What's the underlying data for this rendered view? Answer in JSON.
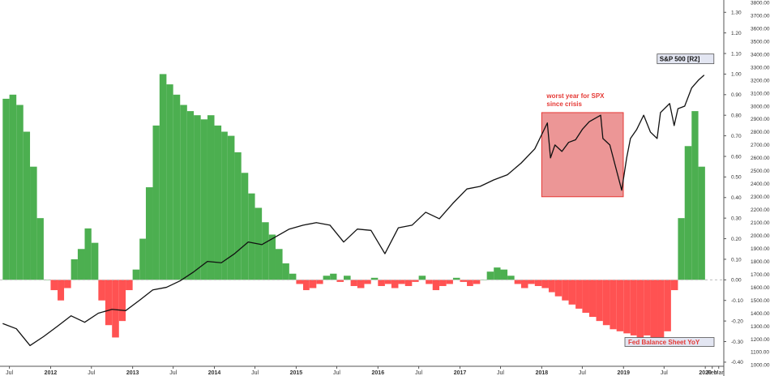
{
  "chart_data": {
    "type": "bar",
    "series": [
      {
        "name": "Fed Balance Sheet YoY",
        "type": "bar",
        "axis": "left",
        "colors": {
          "positive": "#4caf50",
          "negative": "#ff5252"
        },
        "x": [
          "2011-06-01",
          "2011-07-01",
          "2011-08-01",
          "2011-09-01",
          "2011-10-01",
          "2011-11-01",
          "2011-12-01",
          "2012-01-01",
          "2012-02-01",
          "2012-03-01",
          "2012-04-01",
          "2012-05-01",
          "2012-06-01",
          "2012-07-01",
          "2012-08-01",
          "2012-09-01",
          "2012-10-01",
          "2012-11-01",
          "2012-12-01",
          "2013-01-01",
          "2013-02-01",
          "2013-03-01",
          "2013-04-01",
          "2013-05-01",
          "2013-06-01",
          "2013-07-01",
          "2013-08-01",
          "2013-09-01",
          "2013-10-01",
          "2013-11-01",
          "2013-12-01",
          "2014-01-01",
          "2014-02-01",
          "2014-03-01",
          "2014-04-01",
          "2014-05-01",
          "2014-06-01",
          "2014-07-01",
          "2014-08-01",
          "2014-09-01",
          "2014-10-01",
          "2014-11-01",
          "2014-12-01",
          "2015-01-01",
          "2015-02-01",
          "2015-03-01",
          "2015-04-01",
          "2015-05-01",
          "2015-06-01",
          "2015-07-01",
          "2015-08-01",
          "2015-09-01",
          "2015-10-01",
          "2015-11-01",
          "2015-12-01",
          "2016-01-01",
          "2016-02-01",
          "2016-03-01",
          "2016-04-01",
          "2016-05-01",
          "2016-06-01",
          "2016-07-01",
          "2016-08-01",
          "2016-09-01",
          "2016-10-01",
          "2016-11-01",
          "2016-12-01",
          "2017-01-01",
          "2017-02-01",
          "2017-03-01",
          "2017-04-01",
          "2017-05-01",
          "2017-06-01",
          "2017-07-01",
          "2017-08-01",
          "2017-09-01",
          "2017-10-01",
          "2017-11-01",
          "2017-12-01",
          "2018-01-01",
          "2018-02-01",
          "2018-03-01",
          "2018-04-01",
          "2018-05-01",
          "2018-06-01",
          "2018-07-01",
          "2018-08-01",
          "2018-09-01",
          "2018-10-01",
          "2018-11-01",
          "2018-12-01",
          "2019-01-01",
          "2019-02-01",
          "2019-03-01",
          "2019-04-01",
          "2019-05-01",
          "2019-06-01",
          "2019-07-01",
          "2019-08-01",
          "2019-09-01",
          "2019-10-01",
          "2019-11-01",
          "2019-12-01"
        ],
        "values": [
          0.88,
          0.9,
          0.85,
          0.72,
          0.55,
          0.3,
          0.0,
          -0.05,
          -0.1,
          -0.04,
          0.1,
          0.15,
          0.25,
          0.18,
          -0.1,
          -0.22,
          -0.28,
          -0.2,
          -0.05,
          0.05,
          0.2,
          0.45,
          0.75,
          1.0,
          0.95,
          0.9,
          0.85,
          0.82,
          0.8,
          0.78,
          0.8,
          0.75,
          0.72,
          0.7,
          0.62,
          0.52,
          0.42,
          0.35,
          0.28,
          0.22,
          0.15,
          0.08,
          0.03,
          -0.02,
          -0.05,
          -0.04,
          -0.02,
          0.02,
          0.03,
          -0.01,
          0.02,
          -0.03,
          -0.04,
          -0.02,
          0.01,
          -0.03,
          -0.02,
          -0.04,
          -0.02,
          -0.03,
          -0.01,
          0.02,
          -0.02,
          -0.05,
          -0.03,
          -0.02,
          0.01,
          -0.01,
          -0.03,
          -0.02,
          0.0,
          0.04,
          0.06,
          0.05,
          0.02,
          -0.02,
          -0.04,
          -0.02,
          -0.03,
          -0.04,
          -0.06,
          -0.08,
          -0.1,
          -0.12,
          -0.14,
          -0.16,
          -0.18,
          -0.2,
          -0.22,
          -0.24,
          -0.25,
          -0.26,
          -0.27,
          -0.28,
          -0.27,
          -0.29,
          -0.3,
          -0.25,
          -0.05,
          0.3,
          0.65,
          0.82,
          0.55
        ]
      },
      {
        "name": "S&P 500 [R2]",
        "type": "line",
        "axis": "right",
        "color": "#111111",
        "x": [
          "2011-06-01",
          "2011-08-01",
          "2011-10-01",
          "2011-12-01",
          "2012-02-01",
          "2012-04-01",
          "2012-06-01",
          "2012-08-01",
          "2012-10-01",
          "2012-12-01",
          "2013-02-01",
          "2013-04-01",
          "2013-06-01",
          "2013-08-01",
          "2013-10-01",
          "2013-12-01",
          "2014-02-01",
          "2014-04-01",
          "2014-06-01",
          "2014-08-01",
          "2014-10-01",
          "2014-12-01",
          "2015-02-01",
          "2015-04-01",
          "2015-06-01",
          "2015-08-01",
          "2015-10-01",
          "2015-12-01",
          "2016-02-01",
          "2016-04-01",
          "2016-06-01",
          "2016-08-01",
          "2016-10-01",
          "2016-12-01",
          "2017-02-01",
          "2017-04-01",
          "2017-06-01",
          "2017-08-01",
          "2017-10-01",
          "2017-12-01",
          "2018-01-26",
          "2018-02-09",
          "2018-03-01",
          "2018-04-01",
          "2018-05-01",
          "2018-06-01",
          "2018-07-01",
          "2018-08-01",
          "2018-09-21",
          "2018-10-01",
          "2018-11-01",
          "2018-12-24",
          "2019-01-15",
          "2019-02-01",
          "2019-03-01",
          "2019-04-01",
          "2019-05-01",
          "2019-05-31",
          "2019-06-15",
          "2019-07-26",
          "2019-08-15",
          "2019-09-01",
          "2019-10-01",
          "2019-11-01",
          "2019-12-01",
          "2019-12-27"
        ],
        "values": [
          1320,
          1280,
          1150,
          1220,
          1300,
          1380,
          1330,
          1400,
          1430,
          1420,
          1500,
          1580,
          1600,
          1650,
          1720,
          1800,
          1790,
          1860,
          1950,
          1930,
          1990,
          2050,
          2080,
          2100,
          2080,
          1950,
          2050,
          2040,
          1860,
          2060,
          2080,
          2180,
          2130,
          2250,
          2360,
          2380,
          2430,
          2470,
          2560,
          2670,
          2870,
          2600,
          2700,
          2650,
          2720,
          2740,
          2820,
          2880,
          2930,
          2750,
          2700,
          2350,
          2600,
          2750,
          2820,
          2930,
          2800,
          2750,
          2950,
          3020,
          2850,
          2980,
          3000,
          3140,
          3200,
          3240
        ]
      }
    ],
    "y_left": {
      "ticks": [
        "1.30",
        "1.20",
        "1.10",
        "1.00",
        "0.90",
        "0.80",
        "0.70",
        "0.60",
        "0.50",
        "0.40",
        "0.30",
        "0.20",
        "0.10",
        "0.00",
        "-0.10",
        "-0.20",
        "-0.30",
        "-0.40"
      ],
      "range": [
        -0.42,
        1.36
      ]
    },
    "y_right": {
      "ticks": [
        "3800.00",
        "3700.00",
        "3600.00",
        "3500.00",
        "3400.00",
        "3300.00",
        "3200.00",
        "3100.00",
        "3000.00",
        "2900.00",
        "2800.00",
        "2700.00",
        "2600.00",
        "2500.00",
        "2400.00",
        "2300.00",
        "2200.00",
        "2100.00",
        "2000.00",
        "1900.00",
        "1800.00",
        "1700.00",
        "1600.00",
        "1500.00",
        "1400.00",
        "1300.00",
        "1200.00",
        "1100.00",
        "1000.00"
      ],
      "range": [
        990,
        3820
      ]
    },
    "x_axis": {
      "range": [
        "2011-05-20",
        "2020-03-20"
      ],
      "ticks": [
        {
          "label": "Jul",
          "date": "2011-07-01",
          "bold": false
        },
        {
          "label": "2012",
          "date": "2012-01-01",
          "bold": true
        },
        {
          "label": "Jul",
          "date": "2012-07-01",
          "bold": false
        },
        {
          "label": "2013",
          "date": "2013-01-01",
          "bold": true
        },
        {
          "label": "Jul",
          "date": "2013-07-01",
          "bold": false
        },
        {
          "label": "2014",
          "date": "2014-01-01",
          "bold": true
        },
        {
          "label": "Jul",
          "date": "2014-07-01",
          "bold": false
        },
        {
          "label": "2015",
          "date": "2015-01-01",
          "bold": true
        },
        {
          "label": "Jul",
          "date": "2015-07-01",
          "bold": false
        },
        {
          "label": "2016",
          "date": "2016-01-01",
          "bold": true
        },
        {
          "label": "Jul",
          "date": "2016-07-01",
          "bold": false
        },
        {
          "label": "2017",
          "date": "2017-01-01",
          "bold": true
        },
        {
          "label": "Jul",
          "date": "2017-07-01",
          "bold": false
        },
        {
          "label": "2018",
          "date": "2018-01-01",
          "bold": true
        },
        {
          "label": "Jul",
          "date": "2018-07-01",
          "bold": false
        },
        {
          "label": "2019",
          "date": "2019-01-01",
          "bold": true
        },
        {
          "label": "Jul",
          "date": "2019-07-01",
          "bold": false
        },
        {
          "label": "2020",
          "date": "2020-01-01",
          "bold": true
        },
        {
          "label": "Feb",
          "date": "2020-02-01",
          "bold": false
        },
        {
          "label": "Mar",
          "date": "2020-03-01",
          "bold": false
        }
      ]
    },
    "annotations": {
      "highlight_box": {
        "text_line1": "worst year for SPX",
        "text_line2": "since crisis",
        "x_start": "2018-01-01",
        "x_end": "2018-12-31",
        "y_top": 2950,
        "y_bottom": 2300,
        "fill": "#e57373",
        "edge": "#e53935"
      },
      "spx_label": "S&P 500 [R2]",
      "fed_label": "Fed Balance Sheet YoY",
      "zero_line": "dashed"
    },
    "grid": false,
    "legend": "none"
  }
}
